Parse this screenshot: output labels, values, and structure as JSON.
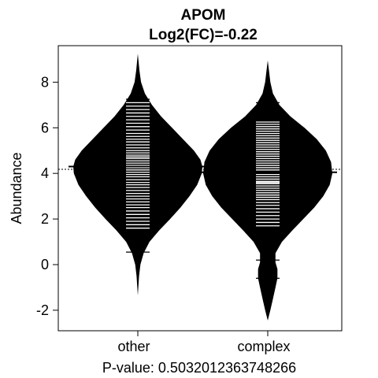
{
  "chart_data": {
    "type": "beanplot",
    "title": "APOM",
    "subtitle": "Log2(FC)=-0.22",
    "xlabel": "P-value: 0.5032012363748266",
    "ylabel": "Abundance",
    "categories": [
      "other",
      "complex"
    ],
    "ylim": [
      -2.9,
      9.6
    ],
    "yticks": [
      -2,
      0,
      2,
      4,
      6,
      8
    ],
    "overall_mean": 4.18,
    "grid": false,
    "legend": "none",
    "series": [
      {
        "category": "other",
        "mean": 4.3,
        "range": [
          -1.35,
          9.25
        ],
        "density_profile": [
          [
            -1.35,
            0.0
          ],
          [
            -0.5,
            0.02
          ],
          [
            0.0,
            0.04
          ],
          [
            0.5,
            0.09
          ],
          [
            1.0,
            0.18
          ],
          [
            1.5,
            0.33
          ],
          [
            2.0,
            0.5
          ],
          [
            2.5,
            0.66
          ],
          [
            3.0,
            0.8
          ],
          [
            3.5,
            0.92
          ],
          [
            4.0,
            0.99
          ],
          [
            4.3,
            1.0
          ],
          [
            4.6,
            0.97
          ],
          [
            5.0,
            0.87
          ],
          [
            5.5,
            0.7
          ],
          [
            6.0,
            0.53
          ],
          [
            6.5,
            0.36
          ],
          [
            7.0,
            0.22
          ],
          [
            7.5,
            0.11
          ],
          [
            8.0,
            0.05
          ],
          [
            8.5,
            0.025
          ],
          [
            9.25,
            0.0
          ]
        ],
        "observations": [
          0.55,
          1.6,
          1.75,
          1.9,
          2.05,
          2.2,
          2.35,
          2.5,
          2.62,
          2.75,
          2.88,
          3.0,
          3.12,
          3.25,
          3.38,
          3.5,
          3.6,
          3.72,
          3.85,
          3.95,
          4.05,
          4.15,
          4.25,
          4.35,
          4.45,
          4.55,
          4.65,
          4.72,
          4.8,
          4.9,
          5.0,
          5.12,
          5.25,
          5.38,
          5.5,
          5.62,
          5.75,
          5.9,
          6.05,
          6.2,
          6.35,
          6.5,
          6.65,
          6.8,
          6.95,
          7.1,
          7.25
        ]
      },
      {
        "category": "complex",
        "mean": 4.05,
        "range": [
          -2.45,
          8.95
        ],
        "density_profile": [
          [
            -2.45,
            0.0
          ],
          [
            -2.0,
            0.04
          ],
          [
            -1.5,
            0.08
          ],
          [
            -1.0,
            0.12
          ],
          [
            -0.6,
            0.15
          ],
          [
            -0.2,
            0.15
          ],
          [
            0.1,
            0.12
          ],
          [
            0.5,
            0.12
          ],
          [
            1.0,
            0.22
          ],
          [
            1.5,
            0.38
          ],
          [
            2.0,
            0.55
          ],
          [
            2.5,
            0.72
          ],
          [
            3.0,
            0.86
          ],
          [
            3.5,
            0.96
          ],
          [
            4.0,
            1.0
          ],
          [
            4.5,
            0.98
          ],
          [
            5.0,
            0.9
          ],
          [
            5.5,
            0.76
          ],
          [
            6.0,
            0.57
          ],
          [
            6.5,
            0.35
          ],
          [
            7.0,
            0.18
          ],
          [
            7.5,
            0.08
          ],
          [
            8.0,
            0.04
          ],
          [
            8.5,
            0.02
          ],
          [
            8.95,
            0.0
          ]
        ],
        "observations": [
          -0.6,
          0.2,
          1.7,
          1.85,
          2.0,
          2.15,
          2.3,
          2.45,
          2.6,
          2.72,
          2.85,
          2.95,
          3.05,
          3.15,
          3.25,
          3.35,
          3.45,
          3.55,
          3.6,
          3.65,
          3.75,
          3.85,
          3.95,
          4.05,
          4.15,
          4.25,
          4.35,
          4.45,
          4.55,
          4.65,
          4.75,
          4.85,
          4.95,
          5.05,
          5.15,
          5.25,
          5.35,
          5.45,
          5.55,
          5.65,
          5.75,
          5.85,
          5.95,
          6.05,
          6.15,
          6.25,
          7.1
        ]
      }
    ]
  }
}
